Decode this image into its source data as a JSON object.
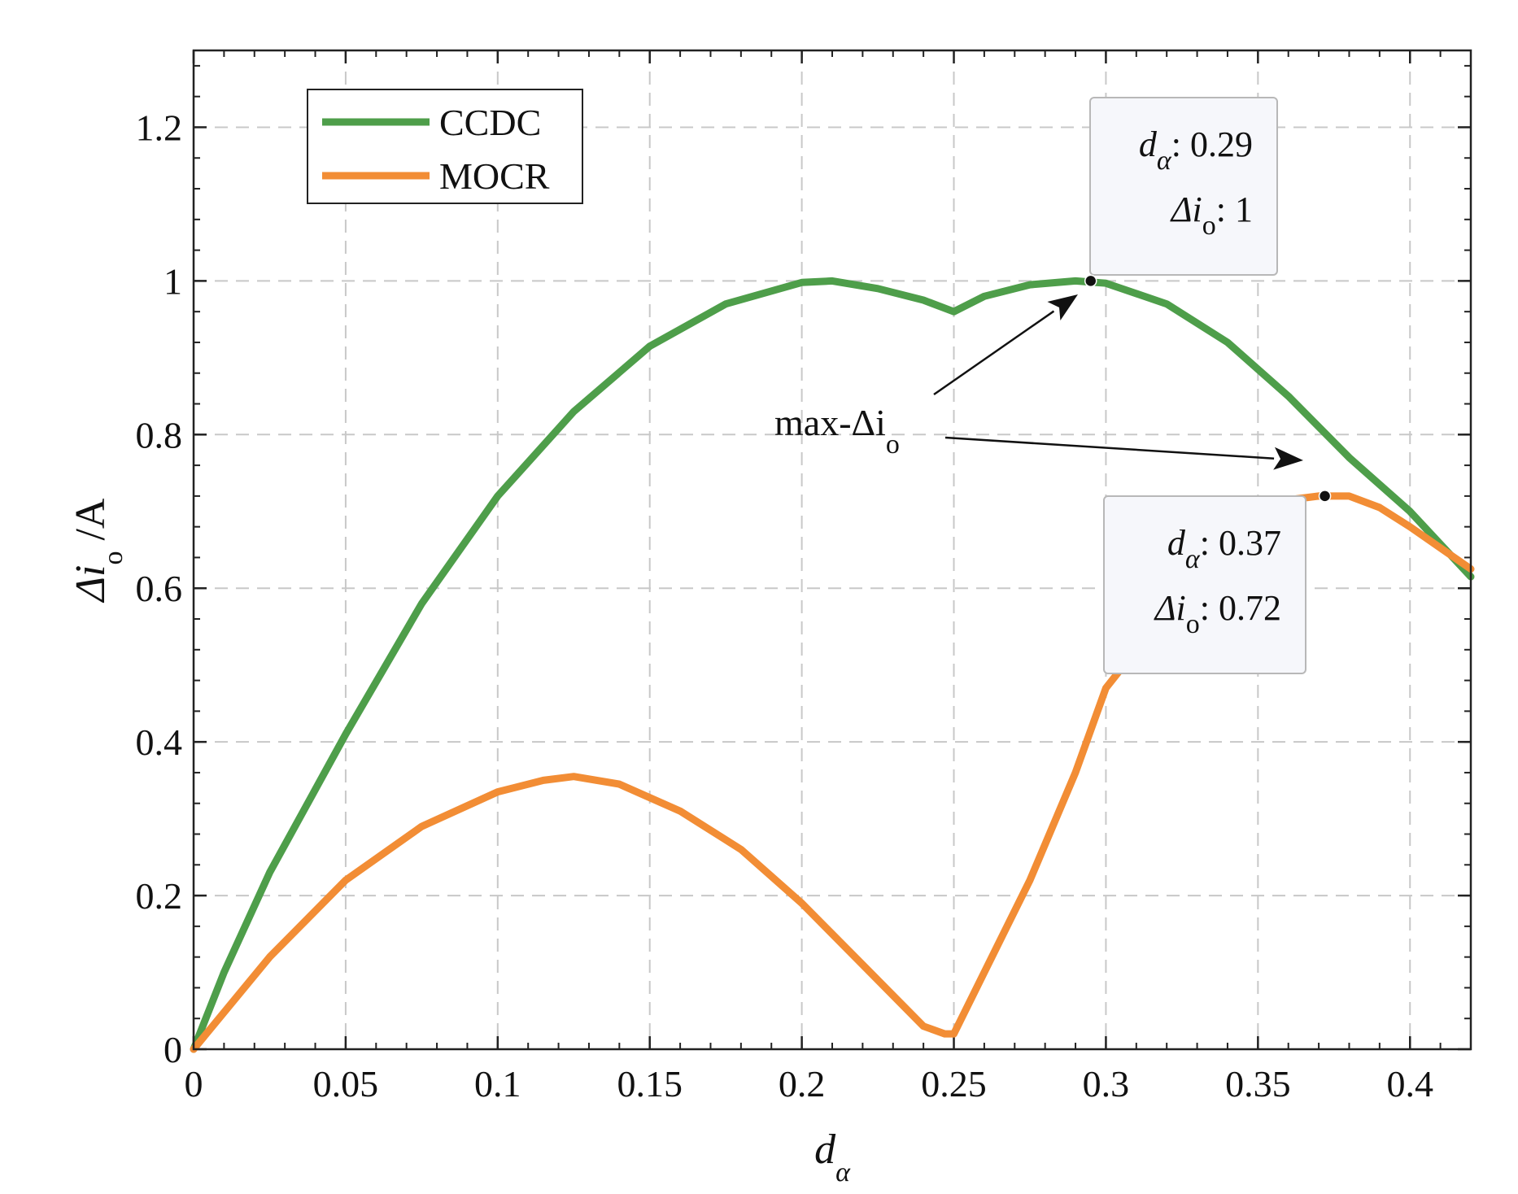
{
  "chart_data": {
    "type": "line",
    "xlabel": "d",
    "xlabel_sub": "α",
    "ylabel": "Δi",
    "ylabel_sub": "o",
    "ylabel_suffix": " /A",
    "xlim": [
      0,
      0.42
    ],
    "ylim": [
      0,
      1.3
    ],
    "grid": true,
    "legend_position": "top-left",
    "x_ticks": [
      0,
      0.05,
      0.1,
      0.15,
      0.2,
      0.25,
      0.3,
      0.35,
      0.4
    ],
    "x_tick_labels": [
      "0",
      "0.05",
      "0.1",
      "0.15",
      "0.2",
      "0.25",
      "0.3",
      "0.35",
      "0.4"
    ],
    "y_ticks": [
      0,
      0.2,
      0.4,
      0.6,
      0.8,
      1,
      1.2
    ],
    "y_tick_labels": [
      "0",
      "0.2",
      "0.4",
      "0.6",
      "0.8",
      "1",
      "1.2"
    ],
    "series": [
      {
        "name": "CCDC",
        "color": "#4e9e4a",
        "x": [
          0,
          0.01,
          0.025,
          0.05,
          0.075,
          0.1,
          0.125,
          0.15,
          0.175,
          0.2,
          0.21,
          0.225,
          0.24,
          0.25,
          0.26,
          0.275,
          0.29,
          0.3,
          0.32,
          0.34,
          0.36,
          0.38,
          0.4,
          0.42
        ],
        "y": [
          0,
          0.1,
          0.23,
          0.41,
          0.58,
          0.72,
          0.83,
          0.915,
          0.97,
          0.998,
          1.0,
          0.99,
          0.975,
          0.96,
          0.98,
          0.995,
          1.0,
          0.997,
          0.97,
          0.92,
          0.85,
          0.77,
          0.7,
          0.615
        ]
      },
      {
        "name": "MOCR",
        "color": "#f28d35",
        "x": [
          0,
          0.025,
          0.05,
          0.075,
          0.1,
          0.115,
          0.125,
          0.14,
          0.16,
          0.18,
          0.2,
          0.22,
          0.24,
          0.247,
          0.25,
          0.26,
          0.275,
          0.29,
          0.3,
          0.33,
          0.35,
          0.36,
          0.37,
          0.38,
          0.39,
          0.4,
          0.42
        ],
        "y": [
          0,
          0.12,
          0.22,
          0.29,
          0.335,
          0.35,
          0.355,
          0.345,
          0.31,
          0.26,
          0.19,
          0.11,
          0.03,
          0.02,
          0.02,
          0.1,
          0.22,
          0.36,
          0.47,
          0.62,
          0.705,
          0.715,
          0.72,
          0.72,
          0.705,
          0.68,
          0.625
        ]
      }
    ],
    "highlights": [
      {
        "series": "CCDC",
        "x": 0.295,
        "y": 1.0,
        "label_d": "0.29",
        "label_i": "1"
      },
      {
        "series": "MOCR",
        "x": 0.372,
        "y": 0.72,
        "label_d": "0.37",
        "label_i": "0.72"
      }
    ],
    "tooltip_symbols": {
      "d": "d",
      "d_sub": "α",
      "i": "Δi",
      "i_sub": "o",
      "separator": ": "
    },
    "annotation": {
      "text": "max-Δi",
      "sub": "o"
    }
  }
}
